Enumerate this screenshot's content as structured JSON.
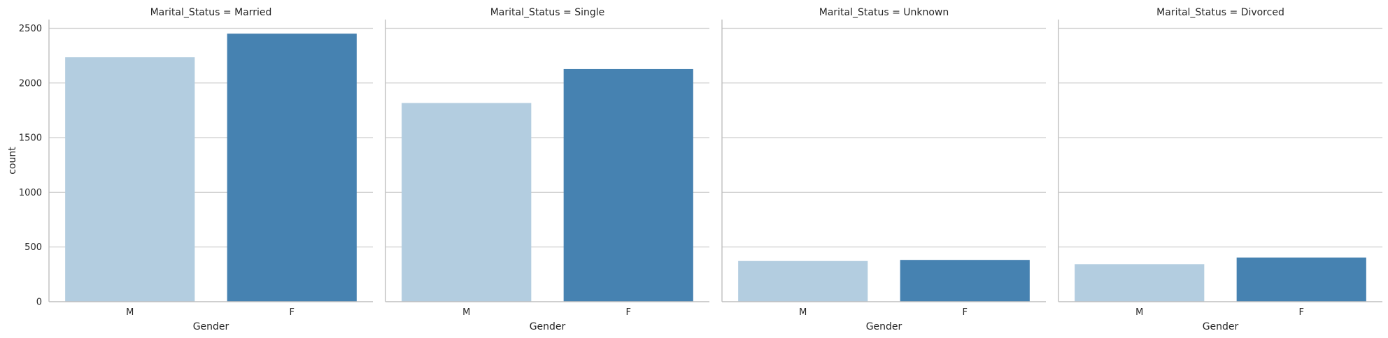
{
  "chart_data": {
    "type": "bar",
    "facet_variable": "Marital_Status",
    "categories": [
      "M",
      "F"
    ],
    "xlabel": "Gender",
    "ylabel": "count",
    "ylim": [
      0,
      2580
    ],
    "yticks": [
      0,
      500,
      1000,
      1500,
      2000,
      2500
    ],
    "grid": "horizontal",
    "colors": [
      "#b3cde0",
      "#4682b1"
    ],
    "panels": [
      {
        "title": "Marital_Status = Married",
        "values": [
          2235,
          2451
        ]
      },
      {
        "title": "Marital_Status = Single",
        "values": [
          1817,
          2127
        ]
      },
      {
        "title": "Marital_Status = Unknown",
        "values": [
          372,
          382
        ]
      },
      {
        "title": "Marital_Status = Divorced",
        "values": [
          343,
          404
        ]
      }
    ]
  }
}
